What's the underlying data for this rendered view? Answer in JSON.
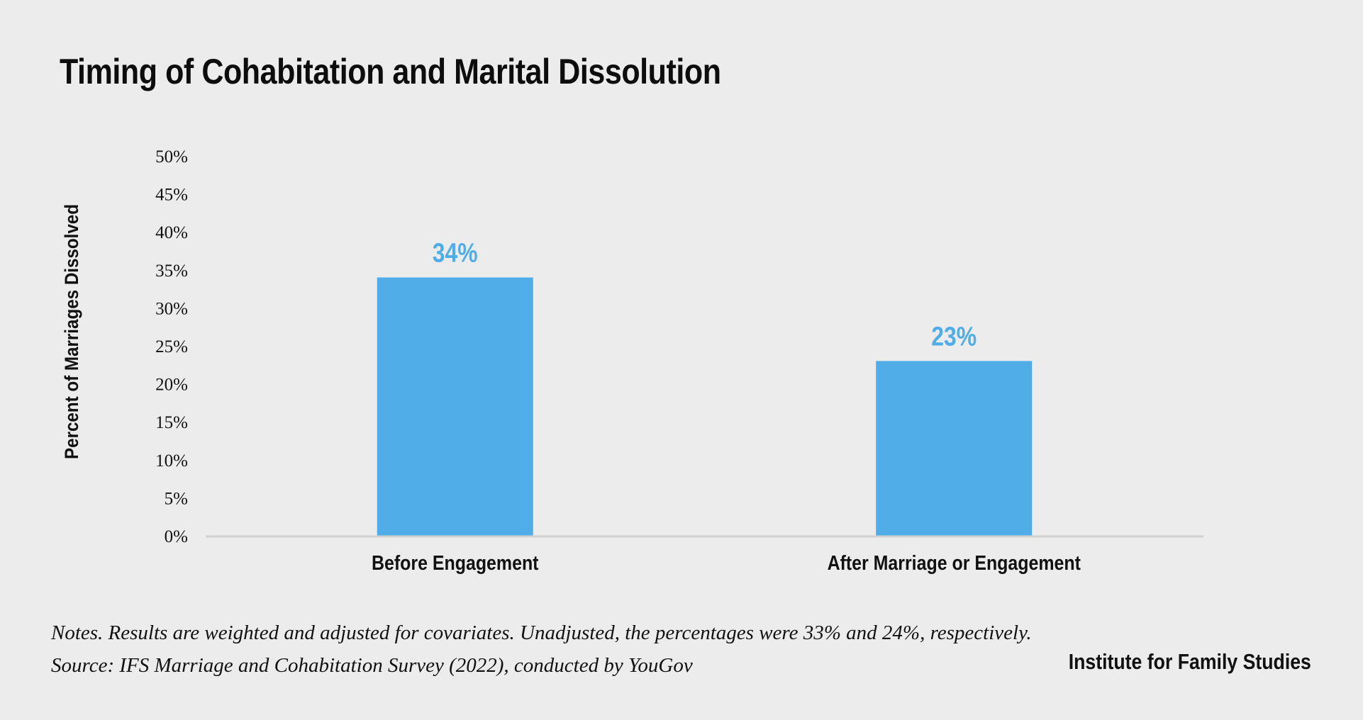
{
  "chart_data": {
    "type": "bar",
    "title": "Timing of Cohabitation and Marital Dissolution",
    "categories": [
      "Before Engagement",
      "After Marriage or Engagement"
    ],
    "values": [
      34,
      23
    ],
    "value_labels": [
      "34%",
      "23%"
    ],
    "ylabel": "Percent of Marriages Dissolved",
    "xlabel": "",
    "ylim": [
      0,
      50
    ],
    "yticks": [
      "0%",
      "5%",
      "10%",
      "15%",
      "20%",
      "25%",
      "30%",
      "35%",
      "40%",
      "45%",
      "50%"
    ],
    "grid": false,
    "bar_color": "#50ade8",
    "label_color": "#50ade8"
  },
  "notes": {
    "line1": "Notes. Results are weighted and adjusted for covariates. Unadjusted, the percentages were 33% and 24%, respectively.",
    "line2": "Source: IFS Marriage and Cohabitation Survey (2022), conducted by YouGov"
  },
  "brand": "Institute for Family Studies"
}
